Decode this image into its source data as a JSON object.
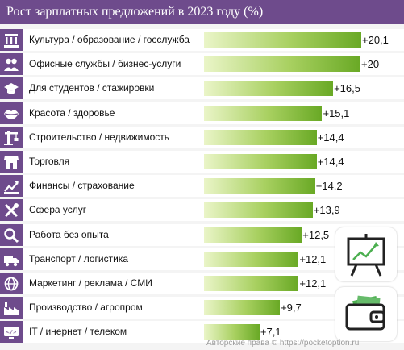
{
  "title": "Рост зарплатных предложений в 2023 году (%)",
  "watermark": "Авторские права © https://pocketoption.ru",
  "colors": {
    "header": "#6e4b8c",
    "bar_dark": "#69a925",
    "bar_light": "#eaf5c8"
  },
  "chart_data": {
    "type": "bar",
    "orientation": "horizontal",
    "categories": [
      "Культура / образование / госслужба",
      "Офисные службы / бизнес-услуги",
      "Для студентов / стажировки",
      "Красота / здоровье",
      "Строительство / недвижимость",
      "Торговля",
      "Финансы / страхование",
      "Сфера услуг",
      "Работа без опыта",
      "Транспорт / логистика",
      "Маркетинг / реклама / СМИ",
      "Производство / агропром",
      "IT / инернет / телеком"
    ],
    "values": [
      20.1,
      20,
      16.5,
      15.1,
      14.4,
      14.4,
      14.2,
      13.9,
      12.5,
      12.1,
      12.1,
      9.7,
      7.1
    ],
    "value_labels": [
      "+20,1",
      "+20",
      "+16,5",
      "+15,1",
      "+14,4",
      "+14,4",
      "+14,2",
      "+13,9",
      "+12,5",
      "+12,1",
      "+12,1",
      "+9,7",
      "+7,1"
    ],
    "icons": [
      "columns-icon",
      "people-icon",
      "graduation-cap-icon",
      "lips-icon",
      "crane-icon",
      "shop-icon",
      "chart-up-icon",
      "tools-icon",
      "magnifier-icon",
      "truck-icon",
      "globe-icon",
      "factory-icon",
      "screen-icon"
    ],
    "xlim": [
      0,
      20.1
    ],
    "grid": false
  }
}
